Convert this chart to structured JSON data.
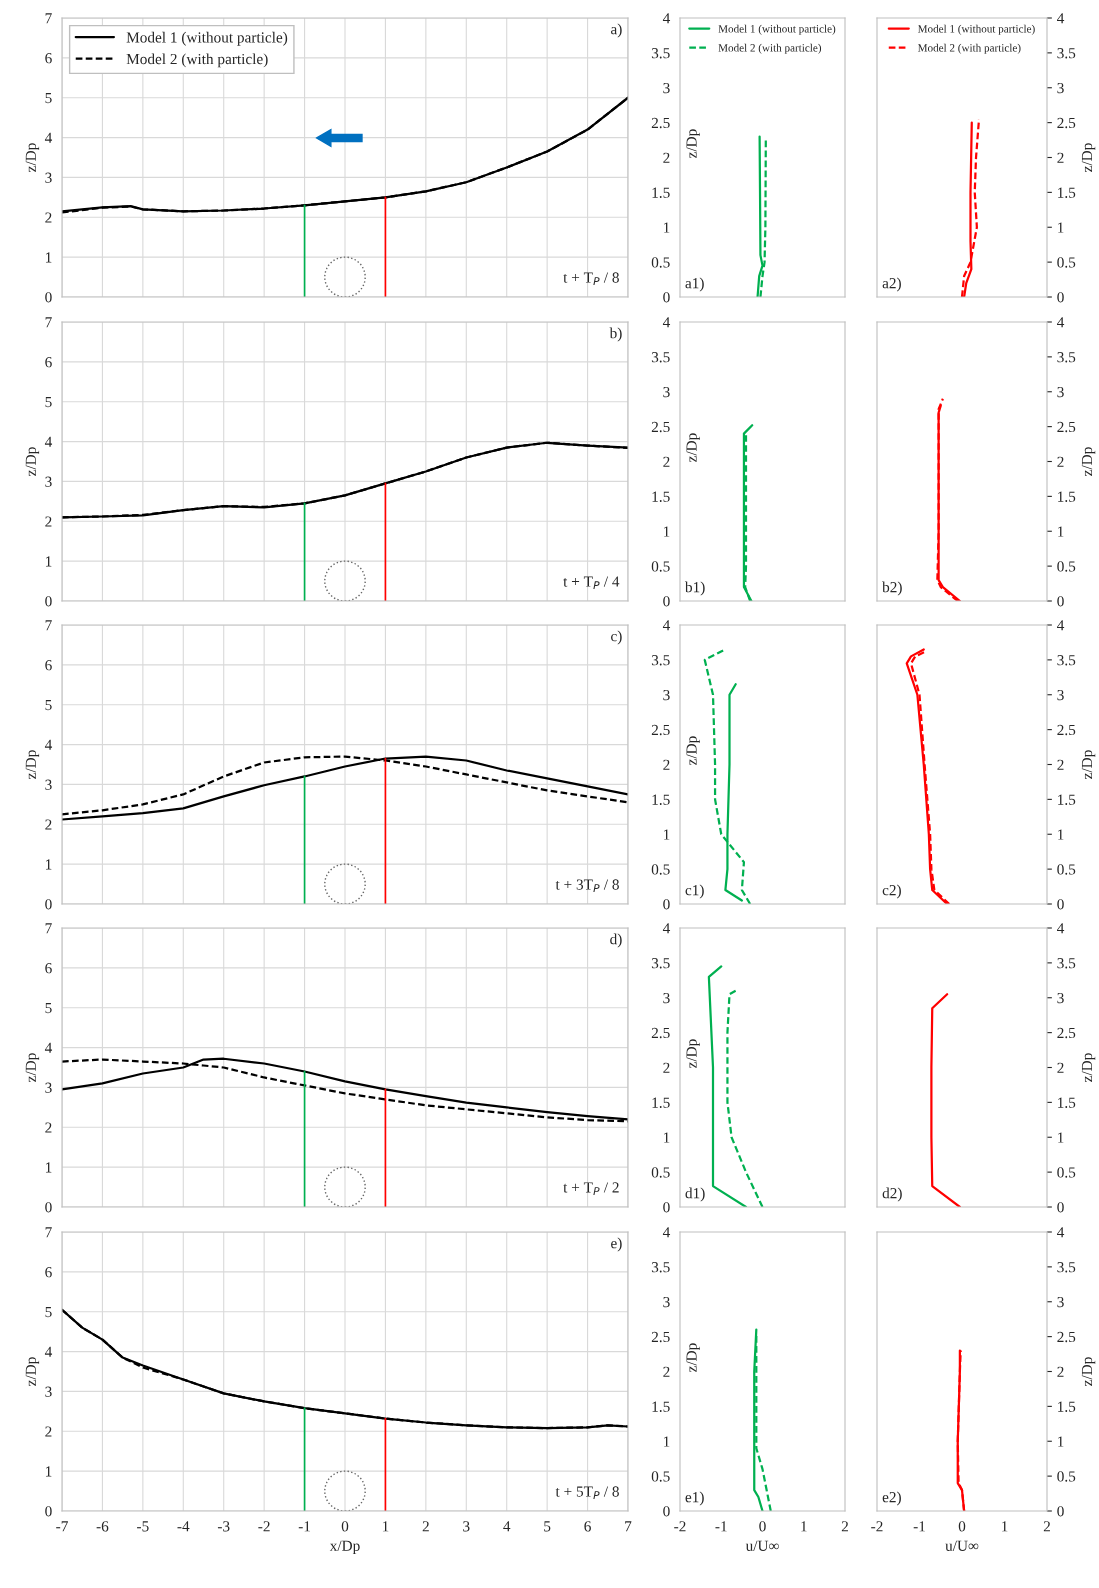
{
  "chart_data": [
    {
      "type": "line",
      "annotations": [
        "a)",
        "t + T$_{P}$ / 8"
      ],
      "ylabel": "z/Dp",
      "x": [
        -7,
        -6,
        -5.3,
        -5,
        -4,
        -3,
        -2,
        -1,
        0,
        1,
        2,
        3,
        4,
        5,
        6,
        7
      ],
      "series": [
        {
          "name": "Model 1 (without particle)",
          "color": "#000000",
          "line_style": "solid",
          "values": [
            2.15,
            2.25,
            2.28,
            2.2,
            2.15,
            2.17,
            2.22,
            2.3,
            2.4,
            2.5,
            2.65,
            2.88,
            3.25,
            3.65,
            4.2,
            5.0
          ]
        },
        {
          "name": "Model 2 (with particle)",
          "color": "#000000",
          "line_style": "dashed",
          "values": [
            2.12,
            2.24,
            2.27,
            2.2,
            2.15,
            2.17,
            2.22,
            2.3,
            2.4,
            2.5,
            2.65,
            2.88,
            3.25,
            3.65,
            4.2,
            5.0
          ]
        }
      ],
      "xlim": [
        -7,
        7
      ],
      "xticks": [
        -7,
        -6,
        -5,
        -4,
        -3,
        -2,
        -1,
        0,
        1,
        2,
        3,
        4,
        5,
        6,
        7
      ],
      "ylim": [
        0,
        7
      ],
      "yticks": [
        0,
        1,
        2,
        3,
        4,
        5,
        6,
        7
      ],
      "grid": true,
      "legend": "top left",
      "tick_labels": "y",
      "ref_lines": [
        {
          "axis": "x",
          "value": -1,
          "color": "#00b050"
        },
        {
          "axis": "x",
          "value": 1,
          "color": "#ff0000"
        }
      ]
    },
    {
      "type": "line",
      "annotations": [
        "a1)"
      ],
      "ylabel": "z/Dp",
      "series": [
        {
          "name": "Model 1 (without particle)",
          "color": "#00b050",
          "line_style": "solid",
          "x": [
            -0.12,
            -0.08,
            0.0,
            -0.05,
            -0.06,
            -0.07
          ],
          "values": [
            0,
            0.3,
            0.45,
            0.6,
            1.5,
            2.3
          ]
        },
        {
          "name": "Model 2 (with particle)",
          "color": "#00b050",
          "line_style": "dashed",
          "x": [
            -0.05,
            0.0,
            0.05,
            0.07,
            0.08
          ],
          "values": [
            0,
            0.3,
            0.5,
            1,
            2.25
          ]
        }
      ],
      "xlim": [
        -2,
        2
      ],
      "xticks": [
        -2,
        -1,
        0,
        1,
        2
      ],
      "ylim": [
        0,
        4
      ],
      "yticks": [
        0,
        0.5,
        1,
        1.5,
        2,
        2.5,
        3,
        3.5,
        4
      ],
      "legend": "top",
      "tick_labels": "y"
    },
    {
      "type": "line",
      "annotations": [
        "a2)"
      ],
      "ylabel": "z/Dp",
      "series": [
        {
          "name": "Model 1 (without particle)",
          "color": "#ff0000",
          "line_style": "solid",
          "x": [
            0.05,
            0.1,
            0.22,
            0.2,
            0.2,
            0.23
          ],
          "values": [
            0,
            0.2,
            0.4,
            0.8,
            1.5,
            2.5
          ]
        },
        {
          "name": "Model 2 (with particle)",
          "color": "#ff0000",
          "line_style": "dashed",
          "x": [
            0.0,
            0.05,
            0.2,
            0.35,
            0.3,
            0.33,
            0.4
          ],
          "values": [
            0,
            0.3,
            0.5,
            1.0,
            1.5,
            2,
            2.55
          ]
        }
      ],
      "xlim": [
        -2,
        2
      ],
      "xticks": [
        -2,
        -1,
        0,
        1,
        2
      ],
      "ylim": [
        0,
        4
      ],
      "yticks": [
        0,
        0.5,
        1,
        1.5,
        2,
        2.5,
        3,
        3.5,
        4
      ],
      "legend": "top",
      "tick_labels": "y"
    },
    {
      "type": "line",
      "annotations": [
        "b)",
        "t + T$_{P}$ / 4"
      ],
      "ylabel": "z/Dp",
      "x": [
        -7,
        -6,
        -5,
        -4,
        -3,
        -2,
        -1,
        0,
        1,
        2,
        3,
        4,
        5,
        6,
        7
      ],
      "series": [
        {
          "color": "#000000",
          "line_style": "solid",
          "values": [
            2.1,
            2.12,
            2.15,
            2.28,
            2.38,
            2.35,
            2.45,
            2.65,
            2.95,
            3.25,
            3.6,
            3.85,
            3.97,
            3.9,
            3.85
          ]
        },
        {
          "color": "#000000",
          "line_style": "dashed",
          "values": [
            2.1,
            2.12,
            2.16,
            2.28,
            2.38,
            2.36,
            2.45,
            2.65,
            2.95,
            3.25,
            3.6,
            3.85,
            3.97,
            3.9,
            3.84
          ]
        }
      ],
      "xlim": [
        -7,
        7
      ],
      "xticks": [
        -7,
        -6,
        -5,
        -4,
        -3,
        -2,
        -1,
        0,
        1,
        2,
        3,
        4,
        5,
        6,
        7
      ],
      "ylim": [
        0,
        7
      ],
      "yticks": [
        0,
        1,
        2,
        3,
        4,
        5,
        6,
        7
      ],
      "grid": true,
      "tick_labels": "y",
      "ref_lines": [
        {
          "axis": "x",
          "value": -1,
          "color": "#00b050"
        },
        {
          "axis": "x",
          "value": 1,
          "color": "#ff0000"
        }
      ]
    },
    {
      "type": "line",
      "annotations": [
        "b1)"
      ],
      "ylabel": "z/Dp",
      "series": [
        {
          "color": "#00b050",
          "line_style": "solid",
          "x": [
            -0.27,
            -0.45,
            -0.45,
            -0.45,
            -0.25
          ],
          "values": [
            0,
            0.2,
            0.5,
            2.4,
            2.52
          ]
        },
        {
          "color": "#00b050",
          "line_style": "dashed",
          "x": [
            -0.3,
            -0.42,
            -0.4,
            -0.4,
            -0.4
          ],
          "values": [
            0,
            0.2,
            0.5,
            1.5,
            2.4
          ]
        }
      ],
      "xlim": [
        -2,
        2
      ],
      "xticks": [
        -2,
        -1,
        0,
        1,
        2
      ],
      "ylim": [
        0,
        4
      ],
      "yticks": [
        0,
        0.5,
        1,
        1.5,
        2,
        2.5,
        3,
        3.5,
        4
      ],
      "tick_labels": "y"
    },
    {
      "type": "line",
      "annotations": [
        "b2)"
      ],
      "ylabel": "z/Dp",
      "series": [
        {
          "color": "#ff0000",
          "line_style": "solid",
          "x": [
            -0.05,
            -0.45,
            -0.55,
            -0.55,
            -0.55,
            -0.5
          ],
          "values": [
            0,
            0.2,
            0.3,
            1,
            2.7,
            2.8
          ]
        },
        {
          "color": "#ff0000",
          "line_style": "dashed",
          "x": [
            -0.1,
            -0.5,
            -0.58,
            -0.55,
            -0.55,
            -0.45
          ],
          "values": [
            0,
            0.2,
            0.3,
            1,
            2.75,
            2.9
          ]
        }
      ],
      "xlim": [
        -2,
        2
      ],
      "xticks": [
        -2,
        -1,
        0,
        1,
        2
      ],
      "ylim": [
        0,
        4
      ],
      "yticks": [
        0,
        0.5,
        1,
        1.5,
        2,
        2.5,
        3,
        3.5,
        4
      ],
      "tick_labels": "y"
    },
    {
      "type": "line",
      "annotations": [
        "c)",
        "t + 3T$_{P}$ / 8"
      ],
      "ylabel": "z/Dp",
      "x": [
        -7,
        -6,
        -5,
        -4,
        -3,
        -2,
        -1,
        0,
        1,
        2,
        3,
        4,
        5,
        6,
        7
      ],
      "series": [
        {
          "color": "#000000",
          "line_style": "solid",
          "values": [
            2.12,
            2.2,
            2.28,
            2.4,
            2.7,
            2.98,
            3.2,
            3.45,
            3.65,
            3.7,
            3.6,
            3.35,
            3.15,
            2.95,
            2.75
          ]
        },
        {
          "color": "#000000",
          "line_style": "dashed",
          "values": [
            2.25,
            2.35,
            2.5,
            2.75,
            3.2,
            3.55,
            3.68,
            3.7,
            3.6,
            3.45,
            3.25,
            3.05,
            2.85,
            2.7,
            2.55
          ]
        }
      ],
      "xlim": [
        -7,
        7
      ],
      "xticks": [
        -7,
        -6,
        -5,
        -4,
        -3,
        -2,
        -1,
        0,
        1,
        2,
        3,
        4,
        5,
        6,
        7
      ],
      "ylim": [
        0,
        7
      ],
      "yticks": [
        0,
        1,
        2,
        3,
        4,
        5,
        6,
        7
      ],
      "grid": true,
      "tick_labels": "y",
      "ref_lines": [
        {
          "axis": "x",
          "value": -1,
          "color": "#00b050"
        },
        {
          "axis": "x",
          "value": 1,
          "color": "#ff0000"
        }
      ]
    },
    {
      "type": "line",
      "annotations": [
        "c1)"
      ],
      "ylabel": "z/Dp",
      "series": [
        {
          "color": "#00b050",
          "line_style": "solid",
          "x": [
            -0.5,
            -0.9,
            -0.85,
            -0.85,
            -0.8,
            -0.8,
            -0.65
          ],
          "values": [
            0.05,
            0.2,
            0.5,
            1,
            2,
            3,
            3.15
          ]
        },
        {
          "color": "#00b050",
          "line_style": "dashed",
          "x": [
            -0.3,
            -0.5,
            -0.45,
            -1.0,
            -1.15,
            -1.15,
            -1.2,
            -1.4,
            -0.9
          ],
          "values": [
            0,
            0.2,
            0.6,
            1,
            1.5,
            2,
            3,
            3.5,
            3.65
          ]
        }
      ],
      "xlim": [
        -2,
        2
      ],
      "xticks": [
        -2,
        -1,
        0,
        1,
        2
      ],
      "ylim": [
        0,
        4
      ],
      "yticks": [
        0,
        0.5,
        1,
        1.5,
        2,
        2.5,
        3,
        3.5,
        4
      ],
      "tick_labels": "y"
    },
    {
      "type": "line",
      "annotations": [
        "c2)"
      ],
      "ylabel": "z/Dp",
      "series": [
        {
          "color": "#ff0000",
          "line_style": "solid",
          "x": [
            -0.35,
            -0.7,
            -0.75,
            -0.78,
            -0.9,
            -1.05,
            -1.3,
            -1.2,
            -0.9
          ],
          "values": [
            0,
            0.2,
            0.5,
            1,
            2,
            3,
            3.45,
            3.55,
            3.65
          ]
        },
        {
          "color": "#ff0000",
          "line_style": "dashed",
          "x": [
            -0.3,
            -0.65,
            -0.72,
            -0.75,
            -0.88,
            -1.0,
            -1.2,
            -1.1,
            -0.85
          ],
          "values": [
            0,
            0.2,
            0.5,
            1,
            2,
            3,
            3.45,
            3.55,
            3.62
          ]
        }
      ],
      "xlim": [
        -2,
        2
      ],
      "xticks": [
        -2,
        -1,
        0,
        1,
        2
      ],
      "ylim": [
        0,
        4
      ],
      "yticks": [
        0,
        0.5,
        1,
        1.5,
        2,
        2.5,
        3,
        3.5,
        4
      ],
      "tick_labels": "y"
    },
    {
      "type": "line",
      "annotations": [
        "d)",
        "t + T$_{P}$ / 2"
      ],
      "ylabel": "z/Dp",
      "x": [
        -7,
        -6,
        -5,
        -4,
        -3.5,
        -3,
        -2,
        -1,
        0,
        1,
        2,
        3,
        4,
        5,
        6,
        7
      ],
      "series": [
        {
          "color": "#000000",
          "line_style": "solid",
          "values": [
            2.95,
            3.1,
            3.35,
            3.5,
            3.7,
            3.72,
            3.6,
            3.4,
            3.15,
            2.95,
            2.78,
            2.62,
            2.5,
            2.38,
            2.28,
            2.2
          ]
        },
        {
          "color": "#000000",
          "line_style": "dashed",
          "values": [
            3.65,
            3.7,
            3.65,
            3.6,
            3.55,
            3.5,
            3.25,
            3.05,
            2.85,
            2.7,
            2.55,
            2.45,
            2.35,
            2.25,
            2.18,
            2.15
          ]
        }
      ],
      "xlim": [
        -7,
        7
      ],
      "xticks": [
        -7,
        -6,
        -5,
        -4,
        -3,
        -2,
        -1,
        0,
        1,
        2,
        3,
        4,
        5,
        6,
        7
      ],
      "ylim": [
        0,
        7
      ],
      "yticks": [
        0,
        1,
        2,
        3,
        4,
        5,
        6,
        7
      ],
      "grid": true,
      "tick_labels": "y",
      "ref_lines": [
        {
          "axis": "x",
          "value": -1,
          "color": "#00b050"
        },
        {
          "axis": "x",
          "value": 1,
          "color": "#ff0000"
        }
      ]
    },
    {
      "type": "line",
      "annotations": [
        "d1)"
      ],
      "ylabel": "z/Dp",
      "series": [
        {
          "color": "#00b050",
          "line_style": "solid",
          "x": [
            -0.4,
            -1.2,
            -1.2,
            -1.2,
            -1.3,
            -1.0
          ],
          "values": [
            0,
            0.3,
            1,
            2,
            3.3,
            3.45
          ]
        },
        {
          "color": "#00b050",
          "line_style": "dashed",
          "x": [
            0.0,
            -0.4,
            -0.75,
            -0.85,
            -0.85,
            -0.8,
            -0.65
          ],
          "values": [
            0,
            0.5,
            1.0,
            1.5,
            2.5,
            3.05,
            3.1
          ]
        }
      ],
      "xlim": [
        -2,
        2
      ],
      "xticks": [
        -2,
        -1,
        0,
        1,
        2
      ],
      "ylim": [
        0,
        4
      ],
      "yticks": [
        0,
        0.5,
        1,
        1.5,
        2,
        2.5,
        3,
        3.5,
        4
      ],
      "tick_labels": "y"
    },
    {
      "type": "line",
      "annotations": [
        "d2)"
      ],
      "ylabel": "z/Dp",
      "series": [
        {
          "color": "#ff0000",
          "line_style": "solid",
          "x": [
            -0.05,
            -0.7,
            -0.72,
            -0.72,
            -0.7,
            -0.35
          ],
          "values": [
            0,
            0.3,
            1,
            2,
            2.85,
            3.05
          ]
        }
      ],
      "xlim": [
        -2,
        2
      ],
      "xticks": [
        -2,
        -1,
        0,
        1,
        2
      ],
      "ylim": [
        0,
        4
      ],
      "yticks": [
        0,
        0.5,
        1,
        1.5,
        2,
        2.5,
        3,
        3.5,
        4
      ],
      "tick_labels": "y"
    },
    {
      "type": "line",
      "annotations": [
        "e)",
        "t + 5T$_{P}$ / 8"
      ],
      "ylabel": "z/Dp",
      "xlabel": "x/Dp",
      "x": [
        -7,
        -6.5,
        -6,
        -5.5,
        -5,
        -4,
        -3,
        -2,
        -1,
        0,
        1,
        2,
        3,
        4,
        5,
        6,
        6.5,
        7
      ],
      "series": [
        {
          "color": "#000000",
          "line_style": "solid",
          "values": [
            5.05,
            4.6,
            4.3,
            3.85,
            3.65,
            3.3,
            2.95,
            2.75,
            2.58,
            2.45,
            2.32,
            2.22,
            2.15,
            2.1,
            2.08,
            2.1,
            2.15,
            2.12
          ]
        },
        {
          "color": "#000000",
          "line_style": "dashed",
          "values": [
            5.05,
            4.6,
            4.3,
            3.85,
            3.6,
            3.3,
            2.95,
            2.75,
            2.58,
            2.45,
            2.32,
            2.22,
            2.15,
            2.1,
            2.08,
            2.1,
            2.15,
            2.12
          ]
        }
      ],
      "xlim": [
        -7,
        7
      ],
      "xticks": [
        -7,
        -6,
        -5,
        -4,
        -3,
        -2,
        -1,
        0,
        1,
        2,
        3,
        4,
        5,
        6,
        7
      ],
      "ylim": [
        0,
        7
      ],
      "yticks": [
        0,
        1,
        2,
        3,
        4,
        5,
        6,
        7
      ],
      "grid": true,
      "ref_lines": [
        {
          "axis": "x",
          "value": -1,
          "color": "#00b050"
        },
        {
          "axis": "x",
          "value": 1,
          "color": "#ff0000"
        }
      ]
    },
    {
      "type": "line",
      "annotations": [
        "e1)"
      ],
      "ylabel": "z/Dp",
      "xlabel": "u/U∞",
      "series": [
        {
          "color": "#00b050",
          "line_style": "solid",
          "x": [
            0.0,
            -0.1,
            -0.2,
            -0.2,
            -0.2,
            -0.15
          ],
          "values": [
            0,
            0.2,
            0.3,
            1,
            2,
            2.6
          ]
        },
        {
          "color": "#00b050",
          "line_style": "dashed",
          "x": [
            0.2,
            0.1,
            0.0,
            -0.15,
            -0.15,
            -0.15
          ],
          "values": [
            0,
            0.3,
            0.6,
            0.9,
            1.5,
            2.55
          ]
        }
      ],
      "xlim": [
        -2,
        2
      ],
      "xticks": [
        -2,
        -1,
        0,
        1,
        2
      ],
      "ylim": [
        0,
        4
      ],
      "yticks": [
        0,
        0.5,
        1,
        1.5,
        2,
        2.5,
        3,
        3.5,
        4
      ]
    },
    {
      "type": "line",
      "annotations": [
        "e2)"
      ],
      "ylabel": "z/Dp",
      "xlabel": "u/U∞",
      "series": [
        {
          "color": "#ff0000",
          "line_style": "solid",
          "x": [
            0.05,
            0.0,
            -0.1,
            -0.1,
            -0.05,
            -0.05
          ],
          "values": [
            0,
            0.3,
            0.4,
            1,
            2,
            2.3
          ]
        },
        {
          "color": "#ff0000",
          "line_style": "dashed",
          "x": [
            0.05,
            0.0,
            -0.08,
            -0.1,
            -0.05,
            -0.03
          ],
          "values": [
            0,
            0.3,
            0.4,
            1,
            2,
            2.3
          ]
        }
      ],
      "xlim": [
        -2,
        2
      ],
      "xticks": [
        -2,
        -1,
        0,
        1,
        2
      ],
      "ylim": [
        0,
        4
      ],
      "yticks": [
        0,
        0.5,
        1,
        1.5,
        2,
        2.5,
        3,
        3.5,
        4
      ]
    }
  ]
}
